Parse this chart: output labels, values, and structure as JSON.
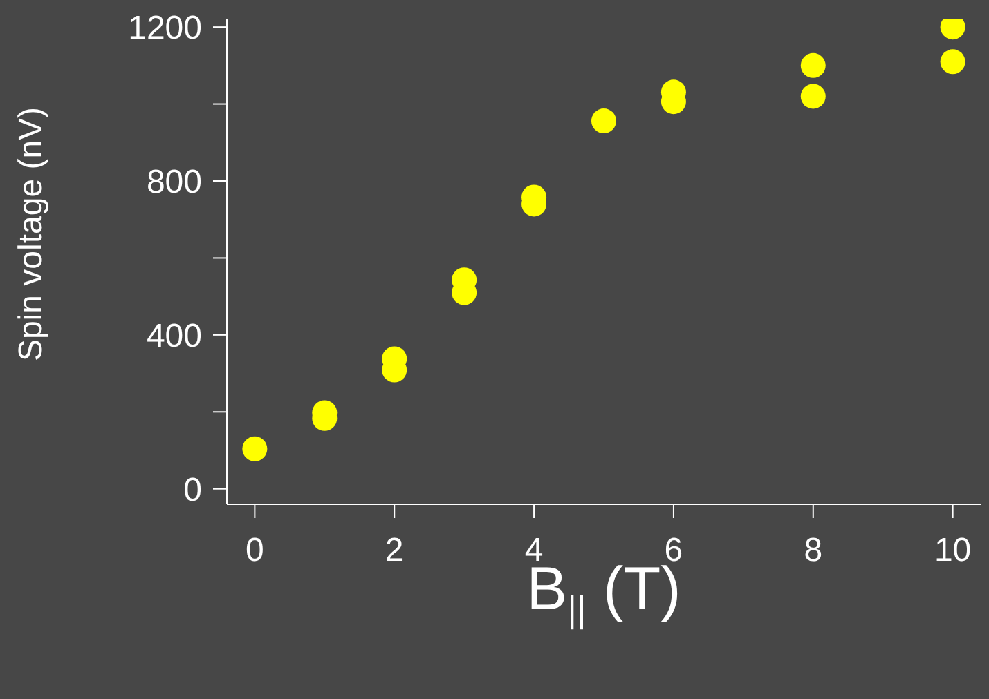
{
  "chart_data": {
    "type": "scatter",
    "xlabel": "B$_{||}$ (T)",
    "ylabel": "Spin voltage (nV)",
    "x": [
      0,
      1,
      1,
      2,
      2,
      3,
      3,
      4,
      4,
      5,
      6,
      6,
      8,
      8,
      10,
      10
    ],
    "values": [
      104,
      198,
      183,
      338,
      309,
      543,
      510,
      758,
      740,
      956,
      1031,
      1006,
      1100,
      1020,
      1200,
      1110
    ],
    "color": "#ffff00",
    "marker": "circle",
    "xlim": [
      -0.4,
      10.4
    ],
    "ylim": [
      -40,
      1220
    ],
    "xticks": [
      0,
      2,
      4,
      6,
      8,
      10
    ],
    "yticks": [
      0,
      {
        "value": 200,
        "label": null
      },
      400,
      {
        "value": 600,
        "label": null
      },
      800,
      {
        "value": 1000,
        "label": null
      },
      1200
    ],
    "grid": false,
    "legend": false
  }
}
